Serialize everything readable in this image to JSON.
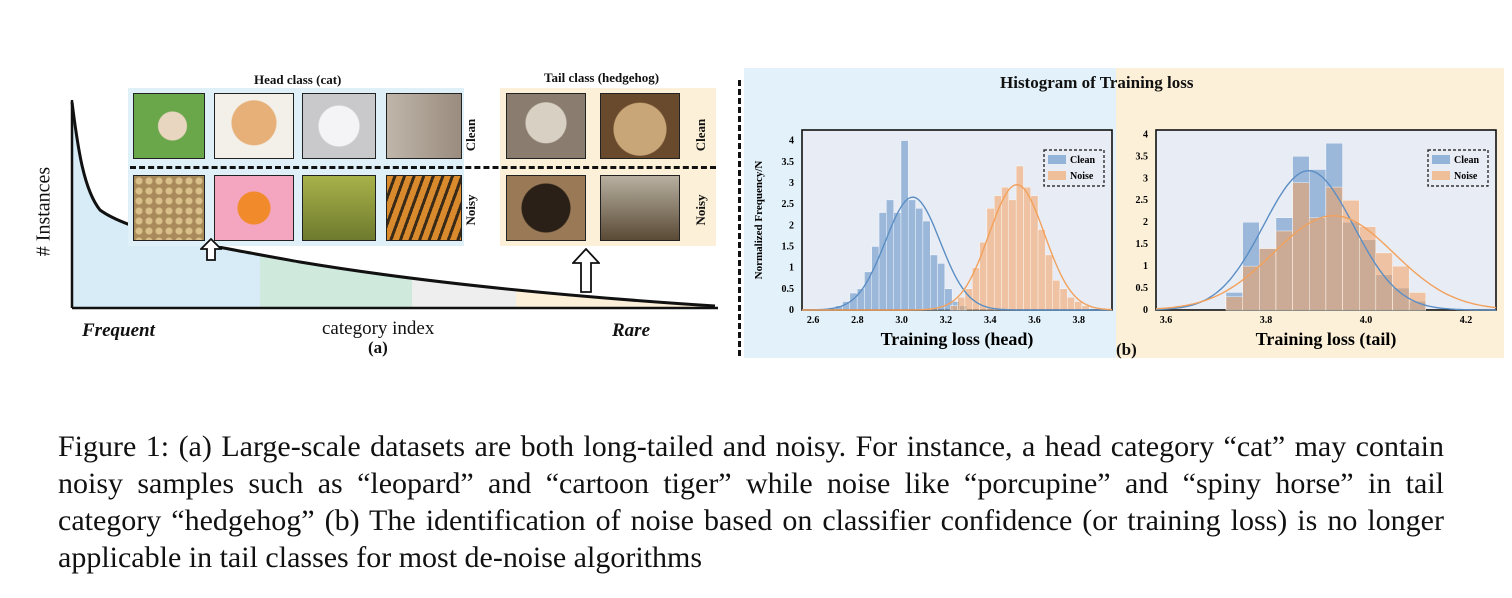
{
  "panel_a": {
    "y_axis_label": "# Instances",
    "x_left_label": "Frequent",
    "x_center_label": "category index",
    "x_right_label": "Rare",
    "panel_label": "(a)",
    "head_title": "Head class (cat)",
    "tail_title": "Tail class (hedgehog)",
    "clean_label": "Clean",
    "noisy_label": "Noisy",
    "colors": {
      "head_bg": "#dff0f8",
      "tail_bg": "#fdf0d8",
      "mid_green": "#cfe9dc",
      "mid_gray": "#eeeeee",
      "curve_blue": "#d7ecf7"
    },
    "thumbnails": [
      {
        "name": "kitten-on-grass",
        "color": "#6aa64a"
      },
      {
        "name": "cat-face",
        "color": "#c8935a"
      },
      {
        "name": "white-kitten",
        "color": "#c9c9cc"
      },
      {
        "name": "cat-with-glasses",
        "color": "#9a8c7e"
      },
      {
        "name": "hedgehog-in-cup",
        "color": "#8a7d70"
      },
      {
        "name": "hedgehog-close",
        "color": "#8a6a44"
      },
      {
        "name": "leopard",
        "color": "#a98a5a"
      },
      {
        "name": "cartoon-tiger",
        "color": "#e77a9c"
      },
      {
        "name": "leopard-in-grass",
        "color": "#7b8a3a"
      },
      {
        "name": "tiger",
        "color": "#c27a2c"
      },
      {
        "name": "porcupine",
        "color": "#4a3a2a"
      },
      {
        "name": "spiny-horse",
        "color": "#5a4a36"
      }
    ]
  },
  "panel_b": {
    "title": "Histogram of Training loss",
    "panel_label": "(b)",
    "colors": {
      "left_bg": "#e3f2fa",
      "right_bg": "#fdf0d8",
      "plot_bg": "#e8ecf5",
      "clean": "#5b8ec4",
      "noise": "#f2a15c"
    }
  },
  "chart_data": [
    {
      "type": "bar",
      "title": "",
      "xlabel": "Training loss (head)",
      "ylabel": "Normalized Frequency/N",
      "xlim": [
        2.55,
        3.95
      ],
      "ylim": [
        0,
        4.25
      ],
      "xticks": [
        "2.6",
        "2.8",
        "3.0",
        "3.2",
        "3.4",
        "3.6",
        "3.8"
      ],
      "yticks": [
        "0",
        "0.5",
        "1",
        "1.5",
        "2",
        "2.5",
        "3",
        "3.5",
        "4"
      ],
      "legend_position": "top-right",
      "series": [
        {
          "name": "Clean",
          "bin_start": 2.7,
          "bin_width": 0.033,
          "values": [
            0.1,
            0.2,
            0.4,
            0.5,
            0.9,
            1.5,
            2.3,
            2.6,
            2.3,
            4.0,
            2.6,
            2.4,
            2.1,
            1.3,
            1.1,
            0.5,
            0.2,
            0.1
          ],
          "curve_mean": 3.05,
          "curve_sd": 0.124
        },
        {
          "name": "Noise",
          "bin_start": 3.22,
          "bin_width": 0.033,
          "values": [
            0.1,
            0.3,
            0.5,
            1.0,
            1.6,
            2.4,
            2.7,
            2.9,
            2.6,
            3.4,
            2.9,
            2.7,
            1.9,
            1.3,
            0.7,
            0.5,
            0.3,
            0.2,
            0.1
          ],
          "curve_mean": 3.52,
          "curve_sd": 0.125
        }
      ]
    },
    {
      "type": "bar",
      "title": "",
      "xlabel": "Training loss (tail)",
      "ylabel": "",
      "xlim": [
        3.58,
        4.26
      ],
      "ylim": [
        0,
        4.1
      ],
      "xticks": [
        "3.6",
        "3.8",
        "4.0",
        "4.2"
      ],
      "yticks": [
        "0",
        "0.5",
        "1",
        "1.5",
        "2",
        "2.5",
        "3",
        "3.5",
        "4"
      ],
      "legend_position": "top-right",
      "series": [
        {
          "name": "Clean",
          "bin_start": 3.72,
          "bin_width": 0.0333,
          "values": [
            0.4,
            2.0,
            1.4,
            2.1,
            3.5,
            3.2,
            3.8,
            2.0,
            1.6,
            0.8,
            0.5,
            0.2
          ],
          "curve_mean": 3.885,
          "curve_sd": 0.09
        },
        {
          "name": "Noise",
          "bin_start": 3.72,
          "bin_width": 0.0333,
          "values": [
            0.3,
            1.0,
            1.4,
            1.8,
            2.9,
            2.1,
            2.8,
            2.5,
            1.9,
            1.3,
            1.0,
            0.4
          ],
          "curve_mean": 3.935,
          "curve_sd": 0.12
        }
      ]
    }
  ],
  "caption": "Figure 1: (a) Large-scale datasets are both long-tailed and noisy. For instance, a head category “cat” may contain noisy samples such as “leopard” and “cartoon tiger” while noise like “porcupine” and “spiny horse” in tail category “hedgehog” (b) The identification of noise based on classifier confidence (or training loss) is no longer applicable in tail classes for most de-noise algorithms"
}
